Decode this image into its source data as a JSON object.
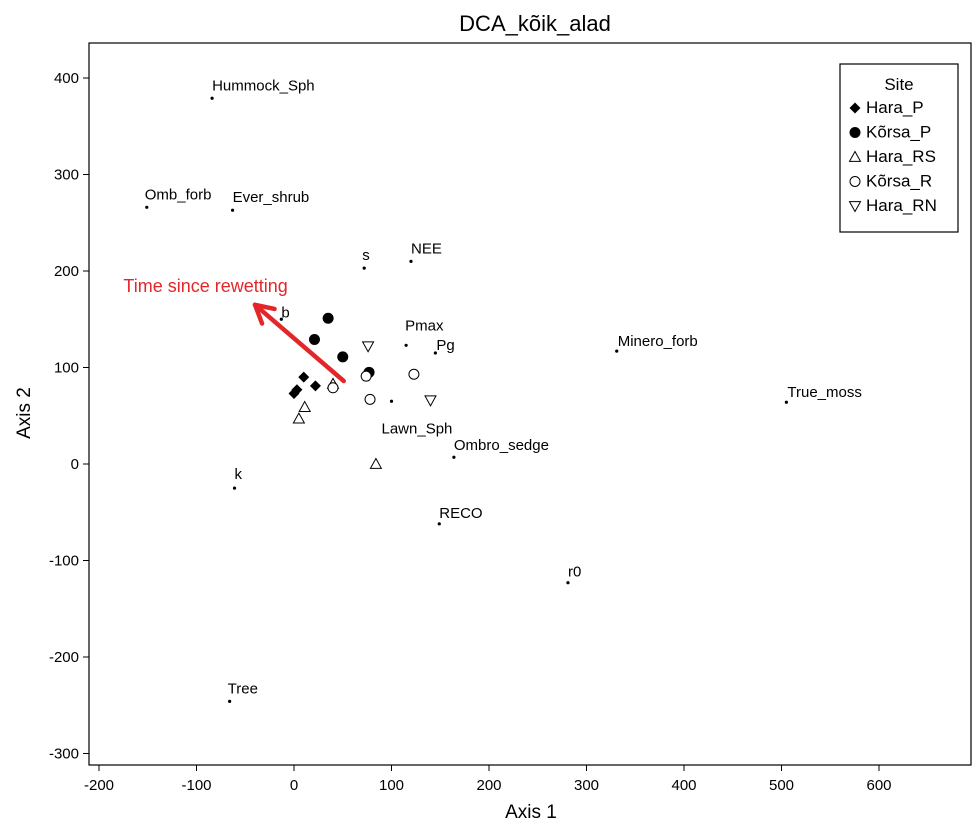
{
  "chart_data": {
    "type": "scatter",
    "title": "DCA_kõik_alad",
    "xlabel": "Axis 1",
    "ylabel": "Axis 2",
    "xlim": [
      -210,
      700
    ],
    "ylim": [
      -310,
      435
    ],
    "xticks": [
      -200,
      -100,
      0,
      100,
      200,
      300,
      400,
      500,
      600
    ],
    "yticks": [
      -300,
      -200,
      -100,
      0,
      100,
      200,
      300,
      400
    ],
    "grid": false,
    "legend": {
      "title": "Site",
      "placement": "top-right",
      "entries": [
        {
          "name": "Hara_P",
          "symbol": "filled-diamond"
        },
        {
          "name": "Kõrsa_P",
          "symbol": "filled-circle"
        },
        {
          "name": "Hara_RS",
          "symbol": "open-triangle-up"
        },
        {
          "name": "Kõrsa_R",
          "symbol": "open-circle"
        },
        {
          "name": "Hara_RN",
          "symbol": "open-triangle-down"
        }
      ]
    },
    "series": [
      {
        "name": "Hara_P",
        "symbol": "filled-diamond",
        "points": [
          {
            "x": 0,
            "y": 73
          },
          {
            "x": 3,
            "y": 77
          },
          {
            "x": 10,
            "y": 90
          },
          {
            "x": 22,
            "y": 81
          }
        ]
      },
      {
        "name": "Kõrsa_P",
        "symbol": "filled-circle",
        "points": [
          {
            "x": 21,
            "y": 129
          },
          {
            "x": 35,
            "y": 151
          },
          {
            "x": 50,
            "y": 111
          },
          {
            "x": 77,
            "y": 95
          }
        ]
      },
      {
        "name": "Hara_RS",
        "symbol": "open-triangle-up",
        "points": [
          {
            "x": 5,
            "y": 47
          },
          {
            "x": 11,
            "y": 59
          },
          {
            "x": 40,
            "y": 83
          },
          {
            "x": 84,
            "y": 0
          }
        ]
      },
      {
        "name": "Kõrsa_R",
        "symbol": "open-circle",
        "points": [
          {
            "x": 40,
            "y": 79
          },
          {
            "x": 74,
            "y": 91
          },
          {
            "x": 78,
            "y": 67
          },
          {
            "x": 123,
            "y": 93
          }
        ]
      },
      {
        "name": "Hara_RN",
        "symbol": "open-triangle-down",
        "points": [
          {
            "x": 76,
            "y": 122
          },
          {
            "x": 140,
            "y": 66
          }
        ]
      }
    ],
    "variables": [
      {
        "label": "Hummock_Sph",
        "x": -84,
        "y": 379
      },
      {
        "label": "Omb_forb",
        "x": -151,
        "y": 266
      },
      {
        "label": "Ever_shrub",
        "x": -63,
        "y": 263
      },
      {
        "label": "s",
        "x": 72,
        "y": 203
      },
      {
        "label": "NEE",
        "x": 120,
        "y": 210
      },
      {
        "label": "b",
        "x": -13,
        "y": 150
      },
      {
        "label": "Pmax",
        "x": 115,
        "y": 123
      },
      {
        "label": "Pg",
        "x": 145,
        "y": 115
      },
      {
        "label": "Minero_forb",
        "x": 331,
        "y": 117
      },
      {
        "label": "True_moss",
        "x": 505,
        "y": 64
      },
      {
        "label": "Lawn_Sph",
        "x": 100,
        "y": 65
      },
      {
        "label": "Ombro_sedge",
        "x": 164,
        "y": 7
      },
      {
        "label": "k",
        "x": -61,
        "y": -25
      },
      {
        "label": "RECO",
        "x": 149,
        "y": -62
      },
      {
        "label": "r0",
        "x": 281,
        "y": -123
      },
      {
        "label": "Tree",
        "x": -66,
        "y": -246
      }
    ],
    "annotation": {
      "text": "Time since rewetting",
      "color": "#e3262a",
      "arrow_from": {
        "x": 51,
        "y": 86
      },
      "arrow_to": {
        "x": -40,
        "y": 165
      },
      "text_anchor": {
        "x": -175,
        "y": 178
      }
    }
  }
}
